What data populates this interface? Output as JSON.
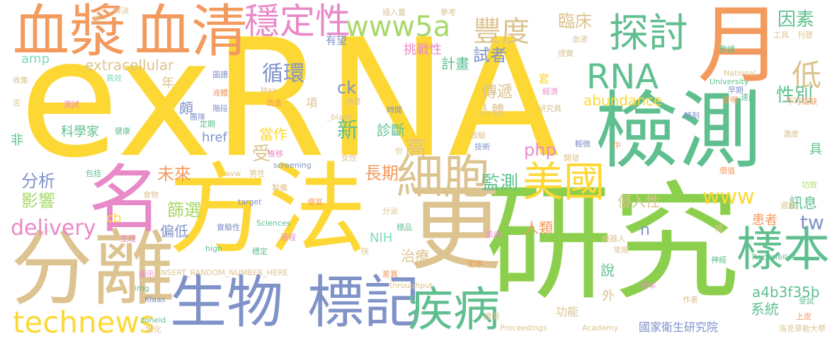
{
  "palette": {
    "yellow": "#fdd835",
    "green": "#8ccf4d",
    "teal": "#5fbf8f",
    "orange": "#f39a5f",
    "tan": "#dcc38f",
    "blue": "#7f93c9",
    "pink": "#e98ac8",
    "mint": "#7ed9c0",
    "lightgreen": "#a8d86a"
  },
  "words": [
    {
      "text": "exRNA",
      "color": "yellow"
    },
    {
      "text": "研究",
      "color": "green"
    },
    {
      "text": "檢測",
      "color": "teal"
    },
    {
      "text": "月",
      "color": "orange"
    },
    {
      "text": "方法",
      "color": "yellow"
    },
    {
      "text": "分離",
      "color": "tan"
    },
    {
      "text": "更",
      "color": "tan"
    },
    {
      "text": "名",
      "color": "pink"
    },
    {
      "text": "血漿",
      "color": "orange"
    },
    {
      "text": "血清",
      "color": "orange"
    },
    {
      "text": "生物",
      "color": "blue"
    },
    {
      "text": "標記",
      "color": "blue"
    },
    {
      "text": "樣本",
      "color": "teal"
    },
    {
      "text": "細胞",
      "color": "tan"
    },
    {
      "text": "疾病",
      "color": "teal"
    },
    {
      "text": "探討",
      "color": "teal"
    },
    {
      "text": "美國",
      "color": "yellow"
    },
    {
      "text": "穩定性",
      "color": "pink"
    },
    {
      "text": "technews",
      "color": "yellow"
    },
    {
      "text": "RNA",
      "color": "teal"
    },
    {
      "text": "www5a",
      "color": "lightgreen"
    },
    {
      "text": "豐度",
      "color": "tan"
    },
    {
      "text": "低",
      "color": "tan"
    },
    {
      "text": "因素",
      "color": "teal"
    },
    {
      "text": "性別",
      "color": "teal"
    },
    {
      "text": "循環",
      "color": "blue"
    },
    {
      "text": "臨床",
      "color": "tan"
    },
    {
      "text": "試者",
      "color": "blue"
    },
    {
      "text": "計畫",
      "color": "teal"
    },
    {
      "text": "挑戰性",
      "color": "pink"
    },
    {
      "text": "有望",
      "color": "blue"
    },
    {
      "text": "extracellular",
      "color": "tan"
    },
    {
      "text": "amp",
      "color": "mint"
    },
    {
      "text": "ck",
      "color": "blue"
    },
    {
      "text": "新",
      "color": "teal"
    },
    {
      "text": "傳遞",
      "color": "tan"
    },
    {
      "text": "人體",
      "color": "tan"
    },
    {
      "text": "abundance",
      "color": "yellow"
    },
    {
      "text": "診斷",
      "color": "teal"
    },
    {
      "text": "高",
      "color": "tan"
    },
    {
      "text": "php",
      "color": "pink"
    },
    {
      "text": "科學家",
      "color": "teal"
    },
    {
      "text": "當作",
      "color": "yellow"
    },
    {
      "text": "受",
      "color": "tan"
    },
    {
      "text": "href",
      "color": "blue"
    },
    {
      "text": "未來",
      "color": "orange"
    },
    {
      "text": "長期",
      "color": "orange"
    },
    {
      "text": "分析",
      "color": "blue"
    },
    {
      "text": "影響",
      "color": "lightgreen"
    },
    {
      "text": "篩選",
      "color": "lightgreen"
    },
    {
      "text": "delivery",
      "color": "pink"
    },
    {
      "text": "cb",
      "color": "yellow"
    },
    {
      "text": "偏低",
      "color": "blue"
    },
    {
      "text": "監測",
      "color": "teal"
    },
    {
      "text": "www",
      "color": "yellow"
    },
    {
      "text": "侵入性",
      "color": "tan"
    },
    {
      "text": "訊息",
      "color": "teal"
    },
    {
      "text": "tw",
      "color": "blue"
    },
    {
      "text": "人類",
      "color": "orange"
    },
    {
      "text": "患者",
      "color": "orange"
    },
    {
      "text": "n",
      "color": "blue"
    },
    {
      "text": "治療",
      "color": "tan"
    },
    {
      "text": "說",
      "color": "teal"
    },
    {
      "text": "a4b3f35b",
      "color": "teal"
    },
    {
      "text": "系統",
      "color": "teal"
    },
    {
      "text": "功能",
      "color": "tan"
    },
    {
      "text": "外",
      "color": "tan"
    },
    {
      "text": "國家衛生研究院",
      "color": "blue"
    },
    {
      "text": "NIH",
      "color": "mint"
    },
    {
      "text": "具",
      "color": "teal"
    },
    {
      "text": "非",
      "color": "teal"
    },
    {
      "text": "頗",
      "color": "blue"
    },
    {
      "text": "年",
      "color": "tan"
    },
    {
      "text": "項",
      "color": "tan"
    },
    {
      "text": "高效",
      "color": "mint"
    },
    {
      "text": "收集",
      "color": "tan"
    },
    {
      "text": "測試",
      "color": "pink"
    },
    {
      "text": "否",
      "color": "tan"
    },
    {
      "text": "健康",
      "color": "teal"
    },
    {
      "text": "包括",
      "color": "teal"
    },
    {
      "text": "解決",
      "color": "tan"
    },
    {
      "text": "第一",
      "color": "tan"
    },
    {
      "text": "插入量",
      "color": "tan"
    },
    {
      "text": "參考",
      "color": "tan"
    },
    {
      "text": "圖譜",
      "color": "blue"
    },
    {
      "text": "液體",
      "color": "orange"
    },
    {
      "text": "階段",
      "color": "blue"
    },
    {
      "text": "團隊",
      "color": "blue"
    },
    {
      "text": "定期",
      "color": "teal"
    },
    {
      "text": "Max",
      "color": "tan"
    },
    {
      "text": "改進",
      "color": "orange"
    },
    {
      "text": "適量",
      "color": "tan"
    },
    {
      "text": "_blank",
      "color": "tan"
    },
    {
      "text": "時間",
      "color": "blue"
    },
    {
      "text": "研究員",
      "color": "tan"
    },
    {
      "text": "src",
      "color": "yellow"
    },
    {
      "text": "套",
      "color": "yellow"
    },
    {
      "text": "經濟",
      "color": "pink"
    },
    {
      "text": "血液",
      "color": "tan"
    },
    {
      "text": "證實",
      "color": "tan"
    },
    {
      "text": "數據",
      "color": "teal"
    },
    {
      "text": "工具",
      "color": "tan"
    },
    {
      "text": "刊登",
      "color": "tan"
    },
    {
      "text": "National",
      "color": "tan"
    },
    {
      "text": "University",
      "color": "teal"
    },
    {
      "text": "早期",
      "color": "blue"
    },
    {
      "text": "發明",
      "color": "orange"
    },
    {
      "text": "速度",
      "color": "teal"
    },
    {
      "text": "不可或缺",
      "color": "orange"
    },
    {
      "text": "時刻",
      "color": "blue"
    },
    {
      "text": "檢驗",
      "color": "tan"
    },
    {
      "text": "技術",
      "color": "blue"
    },
    {
      "text": "輕微",
      "color": "blue"
    },
    {
      "text": "中",
      "color": "orange"
    },
    {
      "text": "開發",
      "color": "tan"
    },
    {
      "text": "濃度",
      "color": "tan"
    },
    {
      "text": "價值",
      "color": "orange"
    },
    {
      "text": "功效",
      "color": "lightgreen"
    },
    {
      "text": "週期",
      "color": "tan"
    },
    {
      "text": "女性",
      "color": "tan"
    },
    {
      "text": "份",
      "color": "tan"
    },
    {
      "text": "男性",
      "color": "tan"
    },
    {
      "text": "avw",
      "color": "tan"
    },
    {
      "text": "screening",
      "color": "blue"
    },
    {
      "text": "推移",
      "color": "pink"
    },
    {
      "text": "製備",
      "color": "tan"
    },
    {
      "text": "食物",
      "color": "tan"
    },
    {
      "text": "target",
      "color": "blue"
    },
    {
      "text": "便宜",
      "color": "orange"
    },
    {
      "text": "分泌",
      "color": "tan"
    },
    {
      "text": "Sciences",
      "color": "teal"
    },
    {
      "text": "標品",
      "color": "teal"
    },
    {
      "text": "實驗性",
      "color": "blue"
    },
    {
      "text": "過程",
      "color": "pink"
    },
    {
      "text": "快",
      "color": "tan"
    },
    {
      "text": "肌肉",
      "color": "pink"
    },
    {
      "text": "隔",
      "color": "tan"
    },
    {
      "text": "機器人",
      "color": "tan"
    },
    {
      "text": "常規",
      "color": "tan"
    },
    {
      "text": "Rockefeller",
      "color": "teal"
    },
    {
      "text": "神經",
      "color": "teal"
    },
    {
      "text": "生理",
      "color": "pink"
    },
    {
      "text": "high",
      "color": "teal"
    },
    {
      "text": "穩定",
      "color": "teal"
    },
    {
      "text": "顯示",
      "color": "pink"
    },
    {
      "text": "INSERT_RANDOM_NUMBER_HERE",
      "color": "tan"
    },
    {
      "text": "差異",
      "color": "orange"
    },
    {
      "text": "定序",
      "color": "orange"
    },
    {
      "text": "img",
      "color": "teal"
    },
    {
      "text": "Klaas",
      "color": "blue"
    },
    {
      "text": "throughput",
      "color": "tan"
    },
    {
      "text": "成本",
      "color": "pink"
    },
    {
      "text": "作者",
      "color": "tan"
    },
    {
      "text": "受試",
      "color": "teal"
    },
    {
      "text": "上皮",
      "color": "orange"
    },
    {
      "text": "zoneid",
      "color": "teal"
    },
    {
      "text": "變化",
      "color": "tan"
    },
    {
      "text": "證明",
      "color": "tan"
    },
    {
      "text": "Proceedings",
      "color": "tan"
    },
    {
      "text": "Academy",
      "color": "tan"
    },
    {
      "text": "洛克菲勒大學",
      "color": "tan"
    }
  ]
}
